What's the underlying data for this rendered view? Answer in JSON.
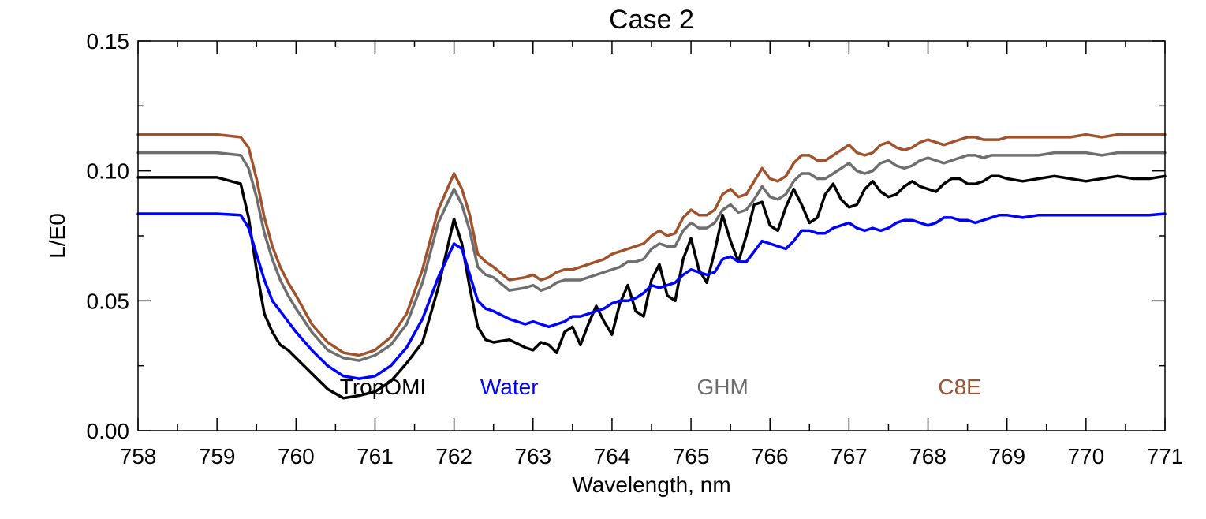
{
  "chart_data": {
    "type": "line",
    "title": "Case 2",
    "xlabel": "Wavelength, nm",
    "ylabel": "L/E0",
    "xlim": [
      758,
      771
    ],
    "ylim": [
      0.0,
      0.15
    ],
    "xticks": [
      758,
      759,
      760,
      761,
      762,
      763,
      764,
      765,
      766,
      767,
      768,
      769,
      770,
      771
    ],
    "xtick_labels": [
      "758",
      "759",
      "760",
      "761",
      "762",
      "763",
      "764",
      "765",
      "766",
      "767",
      "768",
      "769",
      "770",
      "771"
    ],
    "yticks": [
      0.0,
      0.05,
      0.1,
      0.15
    ],
    "ytick_labels": [
      "0.00",
      "0.05",
      "0.10",
      "0.15"
    ],
    "grid": false,
    "legend": "inline text labels",
    "series": [
      {
        "name": "TropOMI",
        "color": "#000000",
        "label_pos": [
          761.1,
          0.017
        ],
        "x": [
          758.0,
          758.5,
          759.0,
          759.3,
          759.4,
          759.5,
          759.6,
          759.7,
          759.8,
          759.9,
          760.0,
          760.2,
          760.4,
          760.6,
          760.8,
          761.0,
          761.2,
          761.4,
          761.6,
          761.8,
          762.0,
          762.1,
          762.2,
          762.3,
          762.4,
          762.5,
          762.7,
          762.9,
          763.0,
          763.1,
          763.2,
          763.3,
          763.4,
          763.5,
          763.6,
          763.7,
          763.8,
          763.9,
          764.0,
          764.1,
          764.2,
          764.3,
          764.4,
          764.5,
          764.6,
          764.7,
          764.8,
          764.9,
          765.0,
          765.1,
          765.2,
          765.3,
          765.4,
          765.5,
          765.6,
          765.7,
          765.8,
          765.9,
          766.0,
          766.1,
          766.2,
          766.3,
          766.4,
          766.5,
          766.6,
          766.7,
          766.8,
          766.9,
          767.0,
          767.1,
          767.2,
          767.3,
          767.4,
          767.5,
          767.6,
          767.7,
          767.8,
          767.9,
          768.0,
          768.1,
          768.2,
          768.3,
          768.4,
          768.5,
          768.6,
          768.7,
          768.8,
          768.9,
          769.0,
          769.2,
          769.4,
          769.6,
          769.8,
          770.0,
          770.2,
          770.4,
          770.6,
          770.8,
          771.0
        ],
        "y": [
          0.0975,
          0.0975,
          0.0975,
          0.095,
          0.082,
          0.062,
          0.045,
          0.038,
          0.033,
          0.031,
          0.028,
          0.022,
          0.016,
          0.0125,
          0.0135,
          0.015,
          0.019,
          0.026,
          0.034,
          0.055,
          0.0815,
          0.072,
          0.055,
          0.04,
          0.035,
          0.034,
          0.035,
          0.032,
          0.031,
          0.034,
          0.033,
          0.03,
          0.038,
          0.04,
          0.033,
          0.041,
          0.048,
          0.042,
          0.037,
          0.049,
          0.056,
          0.046,
          0.044,
          0.058,
          0.064,
          0.052,
          0.05,
          0.066,
          0.074,
          0.062,
          0.057,
          0.069,
          0.083,
          0.073,
          0.065,
          0.075,
          0.087,
          0.088,
          0.079,
          0.077,
          0.086,
          0.093,
          0.087,
          0.08,
          0.082,
          0.091,
          0.095,
          0.089,
          0.086,
          0.087,
          0.093,
          0.096,
          0.092,
          0.09,
          0.091,
          0.094,
          0.096,
          0.094,
          0.093,
          0.092,
          0.095,
          0.097,
          0.097,
          0.095,
          0.095,
          0.096,
          0.098,
          0.098,
          0.097,
          0.096,
          0.097,
          0.098,
          0.097,
          0.096,
          0.097,
          0.098,
          0.097,
          0.097,
          0.098
        ]
      },
      {
        "name": "Water",
        "color": "#0000ff",
        "label_pos": [
          762.7,
          0.017
        ],
        "x": [
          758.0,
          758.5,
          759.0,
          759.3,
          759.4,
          759.5,
          759.6,
          759.7,
          759.8,
          759.9,
          760.0,
          760.2,
          760.4,
          760.6,
          760.8,
          761.0,
          761.2,
          761.4,
          761.6,
          761.8,
          762.0,
          762.1,
          762.2,
          762.3,
          762.4,
          762.5,
          762.7,
          762.9,
          763.0,
          763.1,
          763.2,
          763.3,
          763.4,
          763.5,
          763.6,
          763.7,
          763.8,
          763.9,
          764.0,
          764.1,
          764.2,
          764.3,
          764.4,
          764.5,
          764.6,
          764.7,
          764.8,
          764.9,
          765.0,
          765.1,
          765.2,
          765.3,
          765.4,
          765.5,
          765.6,
          765.7,
          765.8,
          765.9,
          766.0,
          766.1,
          766.2,
          766.3,
          766.4,
          766.5,
          766.6,
          766.7,
          766.8,
          766.9,
          767.0,
          767.1,
          767.2,
          767.3,
          767.4,
          767.5,
          767.6,
          767.7,
          767.8,
          767.9,
          768.0,
          768.1,
          768.2,
          768.3,
          768.4,
          768.5,
          768.6,
          768.7,
          768.8,
          768.9,
          769.0,
          769.2,
          769.4,
          769.6,
          769.8,
          770.0,
          770.2,
          770.4,
          770.6,
          770.8,
          771.0
        ],
        "y": [
          0.0835,
          0.0835,
          0.0835,
          0.083,
          0.078,
          0.068,
          0.058,
          0.05,
          0.046,
          0.042,
          0.038,
          0.031,
          0.025,
          0.021,
          0.02,
          0.021,
          0.025,
          0.032,
          0.043,
          0.059,
          0.072,
          0.07,
          0.06,
          0.05,
          0.047,
          0.046,
          0.043,
          0.041,
          0.042,
          0.041,
          0.04,
          0.041,
          0.042,
          0.044,
          0.044,
          0.045,
          0.046,
          0.047,
          0.049,
          0.05,
          0.05,
          0.051,
          0.053,
          0.056,
          0.055,
          0.056,
          0.057,
          0.06,
          0.062,
          0.061,
          0.06,
          0.061,
          0.066,
          0.067,
          0.065,
          0.065,
          0.069,
          0.073,
          0.072,
          0.071,
          0.07,
          0.073,
          0.077,
          0.077,
          0.076,
          0.076,
          0.078,
          0.079,
          0.08,
          0.078,
          0.077,
          0.078,
          0.077,
          0.078,
          0.08,
          0.081,
          0.081,
          0.08,
          0.079,
          0.08,
          0.082,
          0.082,
          0.081,
          0.081,
          0.08,
          0.081,
          0.082,
          0.083,
          0.083,
          0.082,
          0.083,
          0.083,
          0.083,
          0.083,
          0.083,
          0.083,
          0.083,
          0.083,
          0.0835
        ]
      },
      {
        "name": "GHM",
        "color": "#6e6e6e",
        "label_pos": [
          765.4,
          0.017
        ],
        "x": [
          758.0,
          758.5,
          759.0,
          759.3,
          759.4,
          759.5,
          759.6,
          759.7,
          759.8,
          759.9,
          760.0,
          760.2,
          760.4,
          760.6,
          760.8,
          761.0,
          761.2,
          761.4,
          761.6,
          761.8,
          762.0,
          762.1,
          762.2,
          762.3,
          762.4,
          762.5,
          762.7,
          762.9,
          763.0,
          763.1,
          763.2,
          763.3,
          763.4,
          763.5,
          763.6,
          763.7,
          763.8,
          763.9,
          764.0,
          764.1,
          764.2,
          764.3,
          764.4,
          764.5,
          764.6,
          764.7,
          764.8,
          764.9,
          765.0,
          765.1,
          765.2,
          765.3,
          765.4,
          765.5,
          765.6,
          765.7,
          765.8,
          765.9,
          766.0,
          766.1,
          766.2,
          766.3,
          766.4,
          766.5,
          766.6,
          766.7,
          766.8,
          766.9,
          767.0,
          767.1,
          767.2,
          767.3,
          767.4,
          767.5,
          767.6,
          767.7,
          767.8,
          767.9,
          768.0,
          768.1,
          768.2,
          768.3,
          768.4,
          768.5,
          768.6,
          768.7,
          768.8,
          768.9,
          769.0,
          769.2,
          769.4,
          769.6,
          769.8,
          770.0,
          770.2,
          770.4,
          770.6,
          770.8,
          771.0
        ],
        "y": [
          0.107,
          0.107,
          0.107,
          0.106,
          0.101,
          0.09,
          0.076,
          0.066,
          0.058,
          0.052,
          0.047,
          0.038,
          0.031,
          0.028,
          0.027,
          0.029,
          0.033,
          0.041,
          0.057,
          0.08,
          0.093,
          0.087,
          0.077,
          0.063,
          0.06,
          0.059,
          0.054,
          0.055,
          0.056,
          0.054,
          0.055,
          0.057,
          0.058,
          0.058,
          0.058,
          0.059,
          0.06,
          0.061,
          0.062,
          0.063,
          0.065,
          0.065,
          0.066,
          0.07,
          0.072,
          0.071,
          0.071,
          0.077,
          0.08,
          0.078,
          0.078,
          0.08,
          0.085,
          0.087,
          0.084,
          0.085,
          0.089,
          0.094,
          0.09,
          0.089,
          0.091,
          0.096,
          0.099,
          0.099,
          0.097,
          0.097,
          0.099,
          0.101,
          0.103,
          0.1,
          0.099,
          0.1,
          0.103,
          0.104,
          0.102,
          0.101,
          0.102,
          0.104,
          0.105,
          0.104,
          0.103,
          0.104,
          0.105,
          0.106,
          0.106,
          0.105,
          0.106,
          0.106,
          0.106,
          0.106,
          0.106,
          0.107,
          0.107,
          0.107,
          0.106,
          0.107,
          0.107,
          0.107,
          0.107
        ]
      },
      {
        "name": "C8E",
        "color": "#a0522d",
        "label_pos": [
          768.4,
          0.017
        ],
        "x": [
          758.0,
          758.5,
          759.0,
          759.3,
          759.4,
          759.5,
          759.6,
          759.7,
          759.8,
          759.9,
          760.0,
          760.2,
          760.4,
          760.6,
          760.8,
          761.0,
          761.2,
          761.4,
          761.6,
          761.8,
          762.0,
          762.1,
          762.2,
          762.3,
          762.4,
          762.5,
          762.7,
          762.9,
          763.0,
          763.1,
          763.2,
          763.3,
          763.4,
          763.5,
          763.6,
          763.7,
          763.8,
          763.9,
          764.0,
          764.1,
          764.2,
          764.3,
          764.4,
          764.5,
          764.6,
          764.7,
          764.8,
          764.9,
          765.0,
          765.1,
          765.2,
          765.3,
          765.4,
          765.5,
          765.6,
          765.7,
          765.8,
          765.9,
          766.0,
          766.1,
          766.2,
          766.3,
          766.4,
          766.5,
          766.6,
          766.7,
          766.8,
          766.9,
          767.0,
          767.1,
          767.2,
          767.3,
          767.4,
          767.5,
          767.6,
          767.7,
          767.8,
          767.9,
          768.0,
          768.1,
          768.2,
          768.3,
          768.4,
          768.5,
          768.6,
          768.7,
          768.8,
          768.9,
          769.0,
          769.2,
          769.4,
          769.6,
          769.8,
          770.0,
          770.2,
          770.4,
          770.6,
          770.8,
          771.0
        ],
        "y": [
          0.114,
          0.114,
          0.114,
          0.113,
          0.109,
          0.097,
          0.082,
          0.071,
          0.063,
          0.057,
          0.052,
          0.041,
          0.034,
          0.03,
          0.029,
          0.031,
          0.036,
          0.045,
          0.062,
          0.085,
          0.099,
          0.093,
          0.083,
          0.068,
          0.065,
          0.063,
          0.058,
          0.059,
          0.06,
          0.058,
          0.059,
          0.061,
          0.062,
          0.062,
          0.063,
          0.064,
          0.065,
          0.066,
          0.068,
          0.069,
          0.07,
          0.071,
          0.072,
          0.075,
          0.077,
          0.075,
          0.076,
          0.082,
          0.085,
          0.083,
          0.083,
          0.085,
          0.091,
          0.093,
          0.09,
          0.091,
          0.096,
          0.101,
          0.097,
          0.096,
          0.098,
          0.103,
          0.106,
          0.106,
          0.104,
          0.104,
          0.106,
          0.108,
          0.11,
          0.107,
          0.106,
          0.107,
          0.11,
          0.111,
          0.109,
          0.108,
          0.109,
          0.111,
          0.112,
          0.111,
          0.11,
          0.111,
          0.112,
          0.113,
          0.113,
          0.112,
          0.112,
          0.112,
          0.113,
          0.113,
          0.113,
          0.113,
          0.113,
          0.114,
          0.113,
          0.114,
          0.114,
          0.114,
          0.114
        ]
      }
    ]
  }
}
